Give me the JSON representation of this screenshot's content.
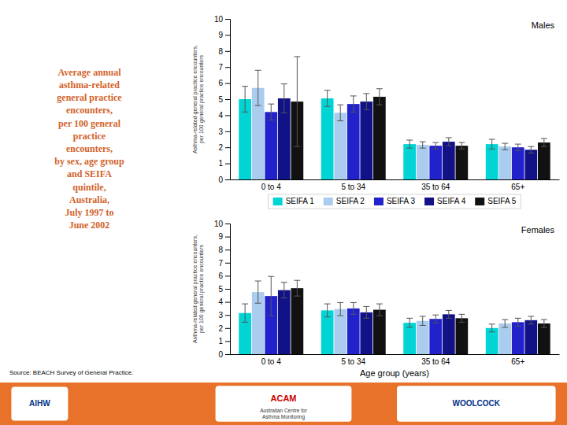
{
  "title": "Average annual\nasthma-related\ngeneral practice\nencounters,\nper 100 general\npractice\nencounters,\nby sex, age group\nand SEIFA\nquintile,\nAustralia,\nJuly 1997 to\nJune 2002",
  "annotations": [
    "Source: BEACH Survey of General Practice.",
    "AIHW",
    "ACAM",
    "Australian Centre for\nAsthma Monitoring",
    "WOOLCOCK"
  ],
  "chart_data": [
    {
      "type": "bar",
      "title": "Males",
      "categories": [
        "0 to 4",
        "5 to 34",
        "35 to 64",
        "65+"
      ],
      "series": [
        {
          "name": "SEIFA 1",
          "color": "#00D4D4",
          "values": [
            5.0,
            5.05,
            2.2,
            2.2
          ],
          "errors": [
            0.8,
            0.5,
            0.25,
            0.3
          ]
        },
        {
          "name": "SEIFA 2",
          "color": "#AACCEE",
          "values": [
            5.7,
            4.15,
            2.15,
            2.05
          ],
          "errors": [
            1.1,
            0.5,
            0.2,
            0.2
          ]
        },
        {
          "name": "SEIFA 3",
          "color": "#2222CC",
          "values": [
            4.2,
            4.7,
            2.1,
            2.0
          ],
          "errors": [
            0.5,
            0.5,
            0.2,
            0.2
          ]
        },
        {
          "name": "SEIFA 4",
          "color": "#111188",
          "values": [
            5.05,
            4.85,
            2.35,
            1.85
          ],
          "errors": [
            0.9,
            0.5,
            0.25,
            0.2
          ]
        },
        {
          "name": "SEIFA 5",
          "color": "#111111",
          "values": [
            4.85,
            5.15,
            2.1,
            2.3
          ],
          "errors": [
            2.8,
            0.5,
            0.2,
            0.25
          ]
        }
      ],
      "ylabel": "Asthma-related general practice encounters,\nper 100 general practice encounters",
      "ylim": [
        0,
        10
      ],
      "yticks": [
        0,
        1,
        2,
        3,
        4,
        5,
        6,
        7,
        8,
        9,
        10
      ],
      "grid": false,
      "legend": "bottom"
    },
    {
      "type": "bar",
      "title": "Females",
      "categories": [
        "0 to 4",
        "5 to 34",
        "35 to 64",
        "65+"
      ],
      "series": [
        {
          "name": "SEIFA 1",
          "color": "#00D4D4",
          "values": [
            3.15,
            3.35,
            2.4,
            2.0
          ],
          "errors": [
            0.7,
            0.5,
            0.35,
            0.3
          ]
        },
        {
          "name": "SEIFA 2",
          "color": "#AACCEE",
          "values": [
            4.75,
            3.45,
            2.55,
            2.35
          ],
          "errors": [
            0.85,
            0.5,
            0.35,
            0.3
          ]
        },
        {
          "name": "SEIFA 3",
          "color": "#2222CC",
          "values": [
            4.45,
            3.5,
            2.7,
            2.45
          ],
          "errors": [
            1.5,
            0.45,
            0.3,
            0.3
          ]
        },
        {
          "name": "SEIFA 4",
          "color": "#111188",
          "values": [
            4.9,
            3.2,
            3.05,
            2.6
          ],
          "errors": [
            0.6,
            0.45,
            0.3,
            0.3
          ]
        },
        {
          "name": "SEIFA 5",
          "color": "#111111",
          "values": [
            5.05,
            3.4,
            2.75,
            2.35
          ],
          "errors": [
            0.6,
            0.45,
            0.3,
            0.3
          ]
        }
      ],
      "ylabel": "Asthma-related general practice encounters,\nper 100 general practice encounters",
      "xlabel": "Age group (years)",
      "ylim": [
        0,
        10
      ],
      "yticks": [
        0,
        1,
        2,
        3,
        4,
        5,
        6,
        7,
        8,
        9,
        10
      ],
      "grid": false
    }
  ]
}
